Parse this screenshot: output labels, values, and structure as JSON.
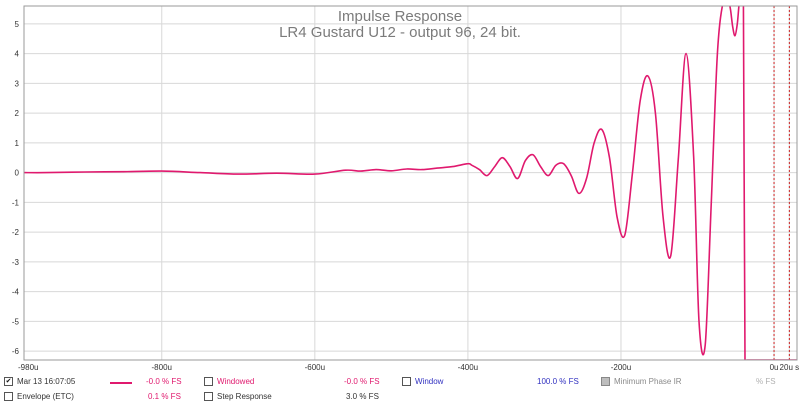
{
  "chart_data": {
    "type": "line",
    "title": "Impulse Response",
    "subtitle": "LR4 Gustard U12 - output 96, 24 bit.",
    "xlabel": "",
    "ylabel": "",
    "xlim": [
      -980,
      30
    ],
    "ylim": [
      -6.3,
      5.6
    ],
    "x_tick_labels": [
      "-980u",
      "-800u",
      "-600u",
      "-400u",
      "-200u",
      "0u",
      "20u s"
    ],
    "x_tick_values": [
      -980,
      -800,
      -600,
      -400,
      -200,
      0,
      20
    ],
    "y_tick_labels": [
      "5",
      "4",
      "3",
      "2",
      "1",
      "0",
      "-1",
      "-2",
      "-3",
      "-4",
      "-5",
      "-6"
    ],
    "y_tick_values": [
      5,
      4,
      3,
      2,
      1,
      0,
      -1,
      -2,
      -3,
      -4,
      -5,
      -6
    ],
    "grid": true,
    "markers": [
      {
        "x": 0,
        "color": "#cc2020",
        "style": "dotted"
      },
      {
        "x": 20,
        "color": "#cc2020",
        "style": "dotted"
      }
    ],
    "series": [
      {
        "color": "#e0196e",
        "x": [
          -980,
          -950,
          -900,
          -850,
          -800,
          -750,
          -700,
          -650,
          -600,
          -560,
          -540,
          -520,
          -500,
          -480,
          -460,
          -440,
          -420,
          -400,
          -395,
          -385,
          -375,
          -365,
          -355,
          -345,
          -335,
          -325,
          -315,
          -305,
          -295,
          -285,
          -275,
          -265,
          -255,
          -245,
          -235,
          -225,
          -215,
          -205,
          -195,
          -185,
          -175,
          -165,
          -155,
          -145,
          -135,
          -125,
          -115,
          -105,
          -98,
          -90,
          -82,
          -74,
          -66,
          -60,
          -57,
          -54,
          -51,
          -48,
          -45,
          -42,
          -40,
          -38,
          -36,
          -30,
          -20,
          -10,
          -5,
          0,
          5,
          10,
          15,
          20,
          25,
          30
        ],
        "y": [
          0,
          0,
          0.02,
          0.03,
          0.05,
          0,
          -0.05,
          -0.02,
          -0.05,
          0.08,
          0.05,
          0.1,
          0.06,
          0.12,
          0.1,
          0.15,
          0.2,
          0.3,
          0.25,
          0.1,
          -0.1,
          0.2,
          0.5,
          0.2,
          -0.2,
          0.4,
          0.6,
          0.2,
          -0.1,
          0.25,
          0.3,
          -0.1,
          -0.7,
          -0.2,
          1.0,
          1.45,
          0.5,
          -1.5,
          -2.1,
          0.0,
          2.4,
          3.25,
          2.0,
          -1.5,
          -2.8,
          0.5,
          4.0,
          0.5,
          -5.0,
          -5.8,
          -1.0,
          4.0,
          5.8,
          5.8,
          5.5,
          4.9,
          4.6,
          5.0,
          5.8,
          5.8,
          5.8,
          -6.3,
          -6.3,
          -6.3,
          -6.3,
          -6.3,
          -6.3,
          -6.3,
          -6.3,
          -6.3,
          -6.3,
          -6.3,
          -6.3,
          -6.3
        ]
      }
    ]
  },
  "legend": {
    "row1": {
      "trace_checkbox": "✔",
      "trace_label": "Mar 13 16:07:05",
      "trace_value": "-0.0 % FS",
      "windowed_label": "Windowed",
      "windowed_value": "-0.0 % FS",
      "window_label": "Window",
      "window_value": "100.0 % FS",
      "minphase_label": "Minimum Phase IR",
      "minphase_value": "% FS"
    },
    "row2": {
      "envelope_label": "Envelope (ETC)",
      "envelope_value": "0.1 % FS",
      "step_label": "Step Response",
      "step_value": "3.0 % FS"
    },
    "colors": {
      "trace": "#e0196e",
      "windowed": "#e0196e",
      "window": "#3030c0",
      "minphase": "#8a8a8a",
      "envelope": "#333333",
      "step": "#333333"
    }
  }
}
